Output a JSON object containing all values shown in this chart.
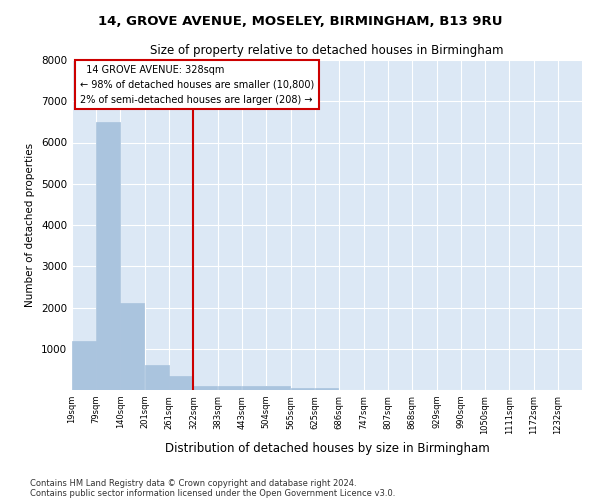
{
  "title1": "14, GROVE AVENUE, MOSELEY, BIRMINGHAM, B13 9RU",
  "title2": "Size of property relative to detached houses in Birmingham",
  "xlabel": "Distribution of detached houses by size in Birmingham",
  "ylabel": "Number of detached properties",
  "footnote1": "Contains HM Land Registry data © Crown copyright and database right 2024.",
  "footnote2": "Contains public sector information licensed under the Open Government Licence v3.0.",
  "annotation_title": "14 GROVE AVENUE: 328sqm",
  "annotation_line1": "← 98% of detached houses are smaller (10,800)",
  "annotation_line2": "2% of semi-detached houses are larger (208) →",
  "bar_color": "#aac4de",
  "vline_color": "#cc0000",
  "annotation_box_edgecolor": "#cc0000",
  "background_color": "#dce8f5",
  "grid_color": "#ffffff",
  "bins": [
    19,
    79,
    140,
    201,
    261,
    322,
    383,
    443,
    504,
    565,
    625,
    686,
    747,
    807,
    868,
    929,
    990,
    1050,
    1111,
    1172,
    1232
  ],
  "counts": [
    1200,
    6500,
    2100,
    600,
    350,
    100,
    90,
    90,
    90,
    50,
    50,
    0,
    0,
    0,
    0,
    0,
    0,
    0,
    0,
    0,
    0
  ],
  "ylim": [
    0,
    8000
  ],
  "yticks": [
    0,
    1000,
    2000,
    3000,
    4000,
    5000,
    6000,
    7000,
    8000
  ],
  "vline_x": 322
}
